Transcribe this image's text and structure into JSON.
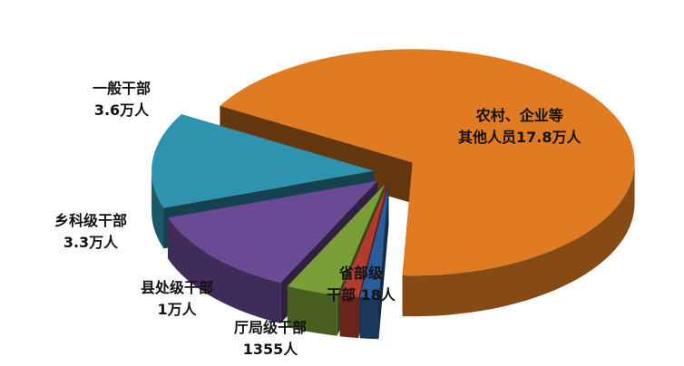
{
  "chart_data": {
    "type": "pie",
    "style": "3d-exploded",
    "unit": "人",
    "slices": [
      {
        "name": "农村、企业等其他人员",
        "value": 178000,
        "label_line1": "农村、企业等",
        "label_line2": "其他人员17.8万人",
        "color": "#E07B22"
      },
      {
        "name": "厅局级干部",
        "value": 1355,
        "label_line1": "厅局级干部",
        "label_line2": "1355人",
        "color": "#2A5D9A"
      },
      {
        "name": "省部级干部",
        "value": 18,
        "label_line1": "省部级",
        "label_line2": "干部 18人",
        "color": "#B23A2E"
      },
      {
        "name": "县处级干部",
        "value": 10000,
        "label_line1": "县处级干部",
        "label_line2": "1万人",
        "color": "#7A9E38"
      },
      {
        "name": "乡科级干部",
        "value": 33000,
        "label_line1": "乡科级干部",
        "label_line2": "3.3万人",
        "color": "#6A4A95"
      },
      {
        "name": "一般干部",
        "value": 36000,
        "label_line1": "一般干部",
        "label_line2": "3.6万人",
        "color": "#2E93AE"
      }
    ]
  }
}
